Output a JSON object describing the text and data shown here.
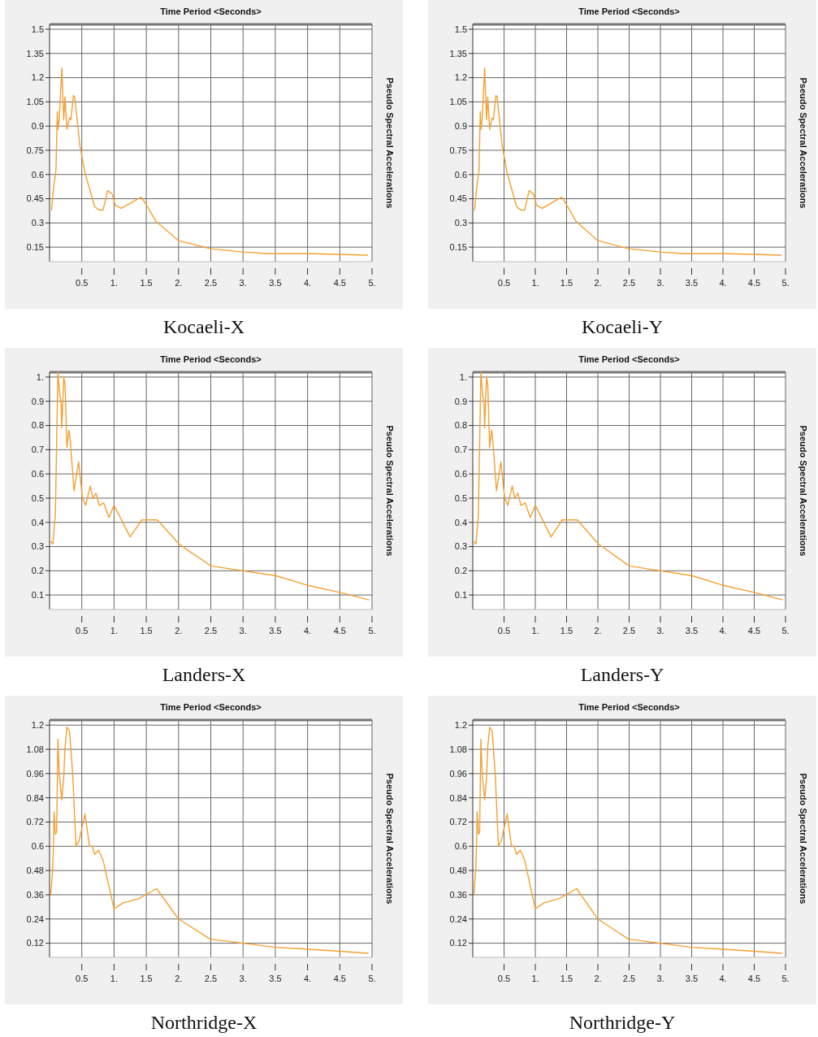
{
  "chart_data": [
    {
      "type": "line",
      "title": "Kocaeli-X",
      "xlabel": "Time Period <Seconds>",
      "ylabel": "Pseudo Spectral Accelerations",
      "grid": true,
      "xlim": [
        0,
        5
      ],
      "xticks": [
        0.5,
        {
          "value": 1,
          "label": "1."
        },
        1.5,
        {
          "value": 2,
          "label": "2."
        },
        2.5,
        {
          "value": 3,
          "label": "3."
        },
        3.5,
        {
          "value": 4,
          "label": "4."
        },
        4.5,
        {
          "value": 5,
          "label": "5."
        }
      ],
      "ylim": [
        0.06,
        1.53
      ],
      "yticks": [
        0.15,
        0.3,
        0.45,
        0.6,
        0.75,
        0.9,
        1.05,
        1.2,
        1.35,
        1.5
      ],
      "x": [
        0.03,
        0.06,
        0.1,
        0.12,
        0.13,
        0.15,
        0.19,
        0.22,
        0.24,
        0.27,
        0.31,
        0.33,
        0.37,
        0.39,
        0.47,
        0.55,
        0.7,
        0.77,
        0.83,
        0.9,
        0.97,
        1.02,
        1.11,
        1.42,
        1.49,
        1.65,
        2.0,
        2.5,
        3.0,
        3.36,
        3.98,
        4.93
      ],
      "series": [
        {
          "color": "#f5a030",
          "values": [
            0.38,
            0.51,
            0.63,
            0.99,
            0.88,
            0.94,
            1.26,
            0.94,
            1.08,
            0.88,
            0.95,
            0.94,
            1.09,
            1.08,
            0.78,
            0.61,
            0.4,
            0.38,
            0.38,
            0.5,
            0.48,
            0.41,
            0.39,
            0.46,
            0.42,
            0.31,
            0.19,
            0.14,
            0.12,
            0.11,
            0.11,
            0.1
          ]
        }
      ]
    },
    {
      "type": "line",
      "title": "Kocaeli-Y",
      "xlabel": "Time Period <Seconds>",
      "ylabel": "Pseudo Spectral Accelerations",
      "grid": true,
      "xlim": [
        0,
        5
      ],
      "xticks": [
        0.5,
        {
          "value": 1,
          "label": "1."
        },
        1.5,
        {
          "value": 2,
          "label": "2."
        },
        2.5,
        {
          "value": 3,
          "label": "3."
        },
        3.5,
        {
          "value": 4,
          "label": "4."
        },
        4.5,
        {
          "value": 5,
          "label": "5."
        }
      ],
      "ylim": [
        0.06,
        1.53
      ],
      "yticks": [
        0.15,
        0.3,
        0.45,
        0.6,
        0.75,
        0.9,
        1.05,
        1.2,
        1.35,
        1.5
      ],
      "x": [
        0.03,
        0.06,
        0.1,
        0.12,
        0.13,
        0.15,
        0.19,
        0.22,
        0.24,
        0.27,
        0.31,
        0.33,
        0.37,
        0.39,
        0.47,
        0.55,
        0.7,
        0.77,
        0.83,
        0.9,
        0.97,
        1.02,
        1.11,
        1.42,
        1.49,
        1.65,
        2.0,
        2.5,
        3.0,
        3.36,
        3.98,
        4.93
      ],
      "series": [
        {
          "color": "#f5a030",
          "values": [
            0.38,
            0.51,
            0.63,
            0.99,
            0.88,
            0.94,
            1.26,
            0.94,
            1.08,
            0.88,
            0.95,
            0.94,
            1.09,
            1.08,
            0.78,
            0.61,
            0.4,
            0.38,
            0.38,
            0.5,
            0.48,
            0.41,
            0.39,
            0.46,
            0.42,
            0.31,
            0.19,
            0.14,
            0.12,
            0.11,
            0.11,
            0.1
          ]
        }
      ]
    },
    {
      "type": "line",
      "title": "Landers-X",
      "xlabel": "Time Period <Seconds>",
      "ylabel": "Pseudo Spectral Accelerations",
      "grid": true,
      "xlim": [
        0,
        5
      ],
      "xticks": [
        0.5,
        {
          "value": 1,
          "label": "1."
        },
        1.5,
        {
          "value": 2,
          "label": "2."
        },
        2.5,
        {
          "value": 3,
          "label": "3."
        },
        3.5,
        {
          "value": 4,
          "label": "4."
        },
        4.5,
        {
          "value": 5,
          "label": "5."
        }
      ],
      "ylim": [
        0.04,
        1.02
      ],
      "yticks": [
        0.1,
        0.2,
        0.3,
        0.4,
        0.5,
        0.6,
        0.7,
        0.8,
        0.9,
        {
          "value": 1,
          "label": "1."
        }
      ],
      "x": [
        0.02,
        0.05,
        0.07,
        0.09,
        0.13,
        0.16,
        0.18,
        0.19,
        0.22,
        0.24,
        0.27,
        0.3,
        0.32,
        0.38,
        0.45,
        0.51,
        0.56,
        0.63,
        0.67,
        0.72,
        0.77,
        0.84,
        0.92,
        1.0,
        1.25,
        1.43,
        1.67,
        2.01,
        2.5,
        3.0,
        3.5,
        4.0,
        4.51,
        4.95
      ],
      "series": [
        {
          "color": "#f5a030",
          "values": [
            0.32,
            0.31,
            0.37,
            0.43,
            1.02,
            0.92,
            0.9,
            0.79,
            1.0,
            0.97,
            0.71,
            0.78,
            0.74,
            0.53,
            0.65,
            0.5,
            0.47,
            0.55,
            0.5,
            0.52,
            0.47,
            0.48,
            0.42,
            0.47,
            0.34,
            0.41,
            0.41,
            0.31,
            0.22,
            0.2,
            0.18,
            0.14,
            0.11,
            0.08
          ]
        }
      ]
    },
    {
      "type": "line",
      "title": "Landers-Y",
      "xlabel": "Time Period <Seconds>",
      "ylabel": "Pseudo Spectral Accelerations",
      "grid": true,
      "xlim": [
        0,
        5
      ],
      "xticks": [
        0.5,
        {
          "value": 1,
          "label": "1."
        },
        1.5,
        {
          "value": 2,
          "label": "2."
        },
        2.5,
        {
          "value": 3,
          "label": "3."
        },
        3.5,
        {
          "value": 4,
          "label": "4."
        },
        4.5,
        {
          "value": 5,
          "label": "5."
        }
      ],
      "ylim": [
        0.04,
        1.02
      ],
      "yticks": [
        0.1,
        0.2,
        0.3,
        0.4,
        0.5,
        0.6,
        0.7,
        0.8,
        0.9,
        {
          "value": 1,
          "label": "1."
        }
      ],
      "x": [
        0.02,
        0.05,
        0.07,
        0.09,
        0.13,
        0.16,
        0.18,
        0.19,
        0.22,
        0.24,
        0.27,
        0.3,
        0.32,
        0.38,
        0.45,
        0.51,
        0.56,
        0.63,
        0.67,
        0.72,
        0.77,
        0.84,
        0.92,
        1.0,
        1.25,
        1.43,
        1.67,
        2.01,
        2.5,
        3.0,
        3.5,
        4.0,
        4.51,
        4.95
      ],
      "series": [
        {
          "color": "#f5a030",
          "values": [
            0.32,
            0.31,
            0.37,
            0.43,
            1.02,
            0.92,
            0.9,
            0.79,
            1.0,
            0.97,
            0.71,
            0.78,
            0.74,
            0.53,
            0.65,
            0.5,
            0.47,
            0.55,
            0.5,
            0.52,
            0.47,
            0.48,
            0.42,
            0.47,
            0.34,
            0.41,
            0.41,
            0.31,
            0.22,
            0.2,
            0.18,
            0.14,
            0.11,
            0.08
          ]
        }
      ]
    },
    {
      "type": "line",
      "title": "Northridge-X",
      "xlabel": "Time Period <Seconds>",
      "ylabel": "Pseudo Spectral Accelerations",
      "grid": true,
      "xlim": [
        0,
        5
      ],
      "xticks": [
        0.5,
        {
          "value": 1,
          "label": "1."
        },
        1.5,
        {
          "value": 2,
          "label": "2."
        },
        2.5,
        {
          "value": 3,
          "label": "3."
        },
        3.5,
        {
          "value": 4,
          "label": "4."
        },
        4.5,
        {
          "value": 5,
          "label": "5."
        }
      ],
      "ylim": [
        0.05,
        1.225
      ],
      "yticks": [
        0.12,
        0.24,
        0.36,
        0.48,
        0.6,
        0.72,
        0.84,
        0.96,
        1.08,
        1.2
      ],
      "x": [
        0.02,
        0.05,
        0.06,
        0.07,
        0.09,
        0.11,
        0.13,
        0.15,
        0.19,
        0.22,
        0.24,
        0.27,
        0.31,
        0.36,
        0.41,
        0.46,
        0.55,
        0.62,
        0.66,
        0.7,
        0.76,
        0.83,
        1.0,
        1.14,
        1.38,
        1.66,
        2.0,
        2.49,
        3.0,
        3.5,
        4.0,
        4.5,
        4.94
      ],
      "series": [
        {
          "color": "#f5a030",
          "values": [
            0.36,
            0.5,
            0.6,
            0.77,
            0.66,
            0.67,
            1.13,
            0.96,
            0.83,
            0.94,
            1.09,
            1.19,
            1.17,
            0.95,
            0.6,
            0.63,
            0.76,
            0.6,
            0.6,
            0.56,
            0.58,
            0.53,
            0.29,
            0.32,
            0.34,
            0.39,
            0.24,
            0.14,
            0.12,
            0.1,
            0.09,
            0.08,
            0.07
          ]
        }
      ]
    },
    {
      "type": "line",
      "title": "Northridge-Y",
      "xlabel": "Time Period <Seconds>",
      "ylabel": "Pseudo Spectral Accelerations",
      "grid": true,
      "xlim": [
        0,
        5
      ],
      "xticks": [
        0.5,
        {
          "value": 1,
          "label": "1."
        },
        1.5,
        {
          "value": 2,
          "label": "2."
        },
        2.5,
        {
          "value": 3,
          "label": "3."
        },
        3.5,
        {
          "value": 4,
          "label": "4."
        },
        4.5,
        {
          "value": 5,
          "label": "5."
        }
      ],
      "ylim": [
        0.05,
        1.225
      ],
      "yticks": [
        0.12,
        0.24,
        0.36,
        0.48,
        0.6,
        0.72,
        0.84,
        0.96,
        1.08,
        1.2
      ],
      "x": [
        0.02,
        0.05,
        0.06,
        0.07,
        0.09,
        0.11,
        0.13,
        0.15,
        0.19,
        0.22,
        0.24,
        0.27,
        0.31,
        0.36,
        0.41,
        0.46,
        0.55,
        0.62,
        0.66,
        0.7,
        0.76,
        0.83,
        1.0,
        1.14,
        1.38,
        1.66,
        2.0,
        2.49,
        3.0,
        3.5,
        4.0,
        4.5,
        4.94
      ],
      "series": [
        {
          "color": "#f5a030",
          "values": [
            0.36,
            0.5,
            0.6,
            0.77,
            0.66,
            0.67,
            1.13,
            0.96,
            0.83,
            0.94,
            1.09,
            1.19,
            1.17,
            0.95,
            0.6,
            0.63,
            0.76,
            0.6,
            0.6,
            0.56,
            0.58,
            0.53,
            0.29,
            0.32,
            0.34,
            0.39,
            0.24,
            0.14,
            0.12,
            0.1,
            0.09,
            0.08,
            0.07
          ]
        }
      ]
    }
  ]
}
